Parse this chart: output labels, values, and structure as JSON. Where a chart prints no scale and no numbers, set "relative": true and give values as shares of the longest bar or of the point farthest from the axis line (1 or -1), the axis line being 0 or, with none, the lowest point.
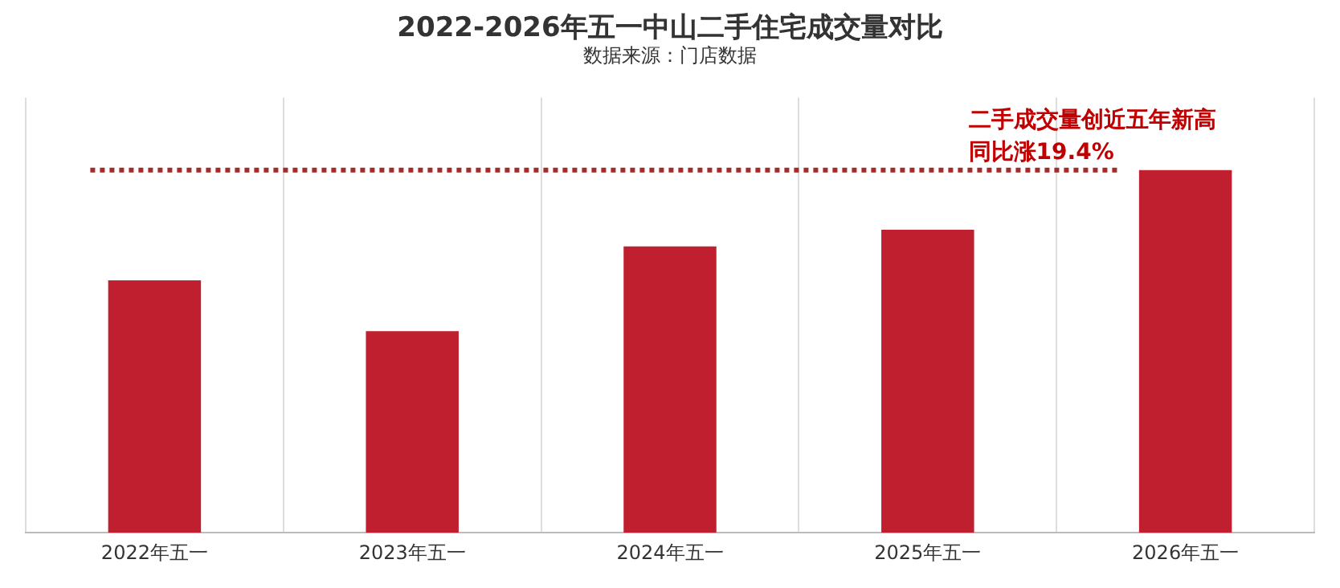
{
  "chart_data": {
    "type": "bar",
    "title": "2022-2026年五一中山二手住宅成交量对比",
    "subtitle": "数据来源：门店数据",
    "categories": [
      "2022年五一",
      "2023年五一",
      "2024年五一",
      "2025年五一",
      "2026年五一"
    ],
    "values": [
      0.696,
      0.556,
      0.79,
      0.836,
      1
    ],
    "color": "#c01f2f",
    "relative": true,
    "grid": "x",
    "ref_lines": [
      {
        "axis": "y",
        "value": 1,
        "color": "#a52a2a",
        "line_style": "dotted"
      }
    ],
    "annotations": [
      "二手成交量创近五年新高",
      "同比涨19.4%"
    ]
  }
}
